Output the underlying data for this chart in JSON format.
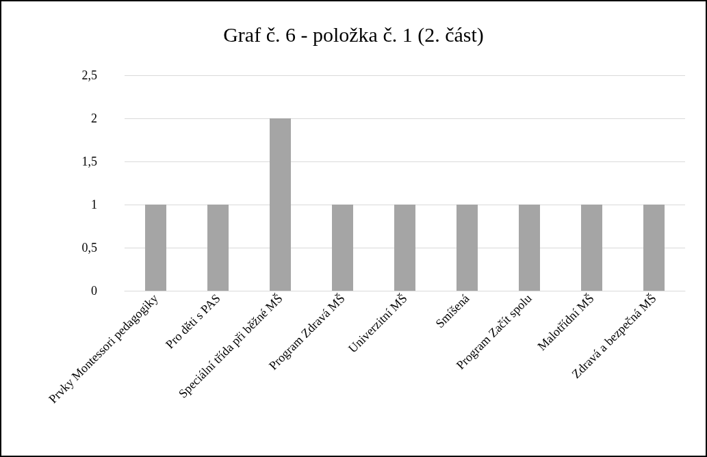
{
  "chart_data": {
    "type": "bar",
    "title": "Graf č. 6 - položka č. 1 (2. část)",
    "categories": [
      "Prvky Montessori pedagogiky",
      "Pro děti s PAS",
      "Speciální třída při běžné MŠ",
      "Program Zdravá MŠ",
      "Univerzitní MŠ",
      "Smíšená",
      "Program Začít spolu",
      "Malotřídní MŠ",
      "Zdravá a bezpečná MŠ"
    ],
    "values": [
      1,
      1,
      2,
      1,
      1,
      1,
      1,
      1,
      1
    ],
    "color": "#a5a5a5",
    "ylim": [
      0,
      2.5
    ],
    "yticks": [
      0,
      {
        "value": 0.5,
        "label": "0,5"
      },
      1,
      {
        "value": 1.5,
        "label": "1,5"
      },
      2,
      {
        "value": 2.5,
        "label": "2,5"
      }
    ],
    "grid": "y"
  }
}
